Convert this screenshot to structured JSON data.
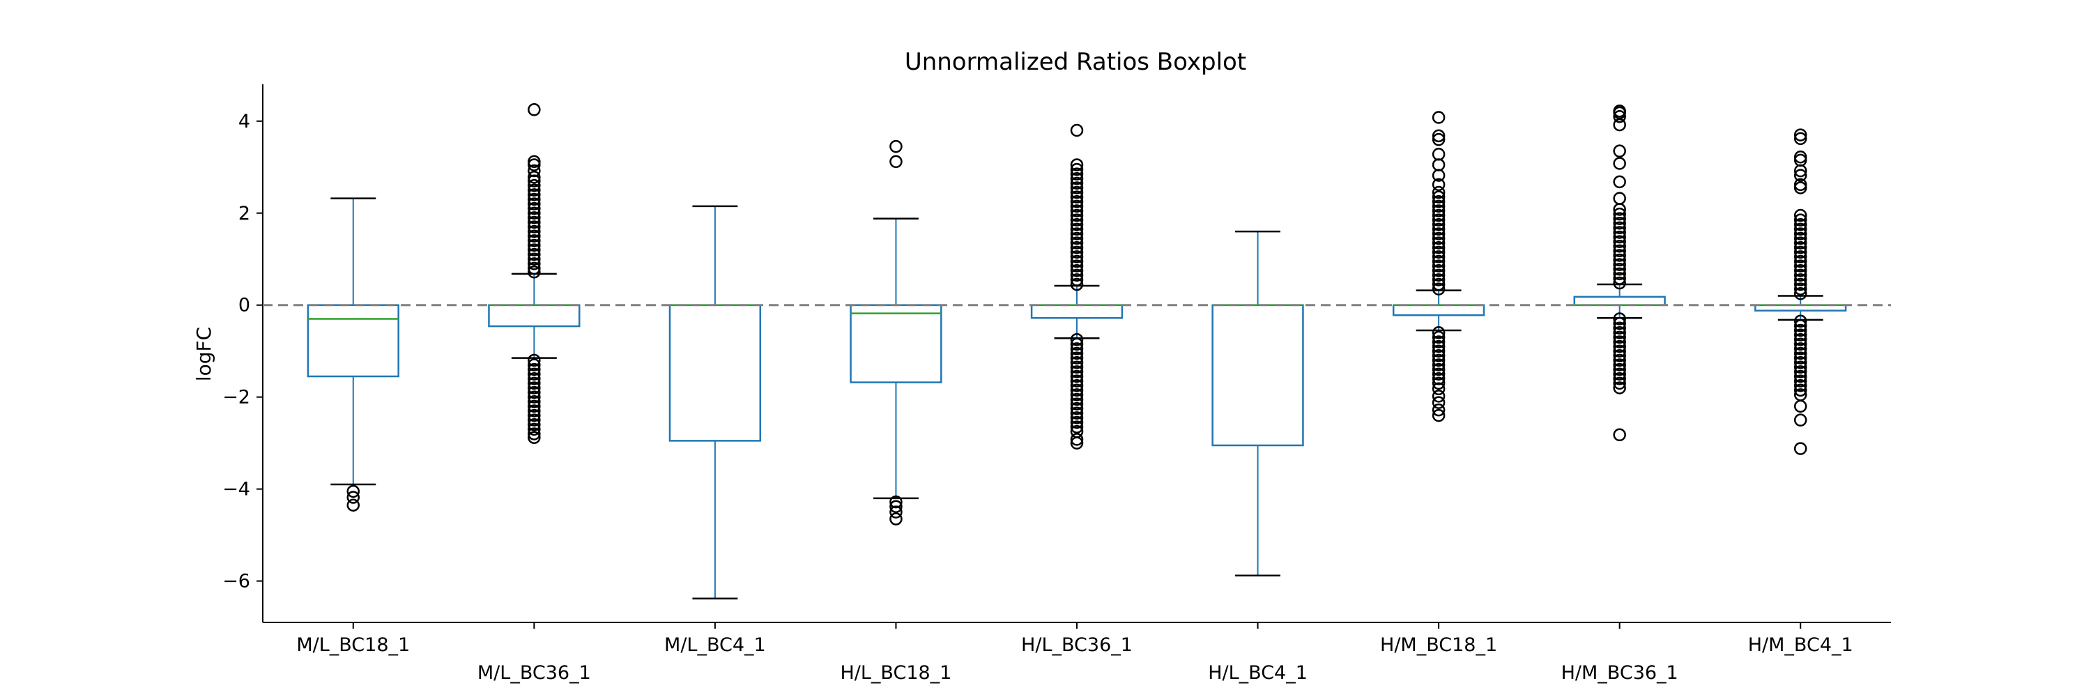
{
  "chart_data": {
    "type": "boxplot",
    "title": "Unnormalized Ratios Boxplot",
    "xlabel": "",
    "ylabel": "logFC",
    "ylim": [
      -6.9,
      4.8
    ],
    "yticks": [
      4,
      2,
      0,
      -2,
      -4,
      -6
    ],
    "ytick_labels": [
      "4",
      "2",
      "0",
      "−2",
      "−4",
      "−6"
    ],
    "grid": false,
    "reference_line": {
      "y": 0,
      "style": "dashed",
      "color": "#808080"
    },
    "colors": {
      "box": "#1f77b4",
      "median": "#2ca02c",
      "flier": "#000000",
      "cap": "#000000"
    },
    "categories": [
      "M/L_BC18_1",
      "M/L_BC36_1",
      "M/L_BC4_1",
      "H/L_BC18_1",
      "H/L_BC36_1",
      "H/L_BC4_1",
      "H/M_BC18_1",
      "H/M_BC36_1",
      "H/M_BC4_1"
    ],
    "boxes": [
      {
        "name": "M/L_BC18_1",
        "whisker_low": -3.9,
        "q1": -1.55,
        "median": -0.3,
        "q3": 0.0,
        "whisker_high": 2.32,
        "outliers": [
          -4.05,
          -4.18,
          -4.35
        ]
      },
      {
        "name": "M/L_BC36_1",
        "whisker_low": -1.15,
        "q1": -0.46,
        "median": 0.0,
        "q3": 0.0,
        "whisker_high": 0.68,
        "outliers": [
          0.72,
          0.8,
          0.9,
          1.0,
          1.1,
          1.2,
          1.3,
          1.4,
          1.5,
          1.6,
          1.7,
          1.8,
          1.9,
          2.0,
          2.1,
          2.2,
          2.3,
          2.4,
          2.5,
          2.6,
          2.7,
          2.78,
          2.92,
          3.05,
          3.12,
          4.25,
          -1.2,
          -1.3,
          -1.4,
          -1.5,
          -1.6,
          -1.7,
          -1.8,
          -1.9,
          -2.0,
          -2.1,
          -2.2,
          -2.3,
          -2.4,
          -2.5,
          -2.6,
          -2.7,
          -2.8,
          -2.88
        ]
      },
      {
        "name": "M/L_BC4_1",
        "whisker_low": -6.38,
        "q1": -2.95,
        "median": 0.0,
        "q3": 0.0,
        "whisker_high": 2.15,
        "outliers": []
      },
      {
        "name": "H/L_BC18_1",
        "whisker_low": -4.2,
        "q1": -1.68,
        "median": -0.18,
        "q3": 0.0,
        "whisker_high": 1.88,
        "outliers": [
          3.12,
          3.45,
          -4.28,
          -4.38,
          -4.5,
          -4.65
        ]
      },
      {
        "name": "H/L_BC36_1",
        "whisker_low": -0.72,
        "q1": -0.28,
        "median": 0.0,
        "q3": 0.0,
        "whisker_high": 0.42,
        "outliers": [
          0.45,
          0.55,
          0.65,
          0.75,
          0.85,
          0.95,
          1.05,
          1.15,
          1.25,
          1.35,
          1.45,
          1.55,
          1.65,
          1.75,
          1.85,
          1.95,
          2.05,
          2.15,
          2.25,
          2.35,
          2.45,
          2.55,
          2.65,
          2.75,
          2.85,
          2.95,
          3.05,
          3.8,
          -0.75,
          -0.85,
          -0.95,
          -1.05,
          -1.15,
          -1.25,
          -1.35,
          -1.45,
          -1.55,
          -1.65,
          -1.75,
          -1.85,
          -1.95,
          -2.05,
          -2.15,
          -2.25,
          -2.35,
          -2.45,
          -2.55,
          -2.65,
          -2.75,
          -2.92,
          -3.0
        ]
      },
      {
        "name": "H/L_BC4_1",
        "whisker_low": -5.88,
        "q1": -3.05,
        "median": 0.0,
        "q3": 0.0,
        "whisker_high": 1.6,
        "outliers": []
      },
      {
        "name": "H/M_BC18_1",
        "whisker_low": -0.55,
        "q1": -0.22,
        "median": 0.0,
        "q3": 0.0,
        "whisker_high": 0.32,
        "outliers": [
          0.35,
          0.45,
          0.55,
          0.65,
          0.75,
          0.85,
          0.95,
          1.05,
          1.15,
          1.25,
          1.35,
          1.45,
          1.55,
          1.65,
          1.75,
          1.85,
          1.95,
          2.05,
          2.15,
          2.25,
          2.35,
          2.45,
          2.62,
          2.82,
          3.05,
          3.28,
          3.6,
          3.68,
          4.08,
          -0.6,
          -0.7,
          -0.8,
          -0.9,
          -1.0,
          -1.1,
          -1.2,
          -1.3,
          -1.4,
          -1.5,
          -1.6,
          -1.7,
          -1.82,
          -1.98,
          -2.12,
          -2.28,
          -2.4
        ]
      },
      {
        "name": "H/M_BC36_1",
        "whisker_low": -0.28,
        "q1": 0.0,
        "median": 0.0,
        "q3": 0.18,
        "whisker_high": 0.45,
        "outliers": [
          0.48,
          0.58,
          0.68,
          0.78,
          0.88,
          0.98,
          1.08,
          1.18,
          1.28,
          1.38,
          1.48,
          1.58,
          1.68,
          1.78,
          1.88,
          1.98,
          2.08,
          2.32,
          2.68,
          3.08,
          3.35,
          3.92,
          4.1,
          4.18,
          4.22,
          -0.3,
          -0.4,
          -0.5,
          -0.6,
          -0.7,
          -0.8,
          -0.9,
          -1.0,
          -1.1,
          -1.2,
          -1.3,
          -1.4,
          -1.5,
          -1.6,
          -1.7,
          -1.8,
          -2.82
        ]
      },
      {
        "name": "H/M_BC4_1",
        "whisker_low": -0.32,
        "q1": -0.12,
        "median": 0.0,
        "q3": 0.0,
        "whisker_high": 0.2,
        "outliers": [
          0.25,
          0.35,
          0.45,
          0.55,
          0.65,
          0.75,
          0.85,
          0.95,
          1.05,
          1.15,
          1.25,
          1.35,
          1.45,
          1.55,
          1.65,
          1.75,
          1.85,
          1.95,
          2.55,
          2.62,
          2.82,
          2.92,
          3.15,
          3.22,
          3.62,
          3.7,
          -0.35,
          -0.45,
          -0.55,
          -0.65,
          -0.75,
          -0.85,
          -0.95,
          -1.05,
          -1.15,
          -1.25,
          -1.35,
          -1.45,
          -1.55,
          -1.65,
          -1.75,
          -1.85,
          -1.95,
          -2.2,
          -2.5,
          -3.12
        ]
      }
    ]
  }
}
